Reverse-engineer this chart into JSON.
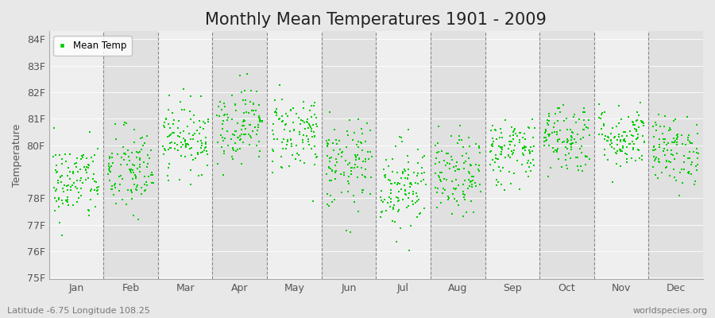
{
  "title": "Monthly Mean Temperatures 1901 - 2009",
  "ylabel": "Temperature",
  "xlabel_bottom": "Latitude -6.75 Longitude 108.25",
  "xlabel_right": "worldspecies.org",
  "legend_label": "Mean Temp",
  "dot_color": "#00CC00",
  "background_color": "#E8E8E8",
  "band_color_light": "#EFEFEF",
  "band_color_dark": "#E0E0E0",
  "ylim_low": 75,
  "ylim_high": 84.3,
  "yticks": [
    75,
    76,
    77,
    78,
    80,
    81,
    82,
    83,
    84
  ],
  "ytick_labels": [
    "75F",
    "76F",
    "77F",
    "78F",
    "80F",
    "81F",
    "82F",
    "83F",
    "84F"
  ],
  "months": [
    "Jan",
    "Feb",
    "Mar",
    "Apr",
    "May",
    "Jun",
    "Jul",
    "Aug",
    "Sep",
    "Oct",
    "Nov",
    "Dec"
  ],
  "n_years": 109,
  "seed": 42,
  "mean_temps_by_month": [
    78.6,
    79.0,
    80.3,
    80.8,
    80.5,
    79.2,
    78.5,
    78.8,
    79.8,
    80.3,
    80.3,
    79.8
  ],
  "std_temps_by_month": [
    0.75,
    0.85,
    0.65,
    0.72,
    0.75,
    0.85,
    0.85,
    0.75,
    0.65,
    0.68,
    0.6,
    0.65
  ],
  "title_fontsize": 15,
  "tick_fontsize": 9,
  "label_fontsize": 9,
  "dot_size": 2.5
}
